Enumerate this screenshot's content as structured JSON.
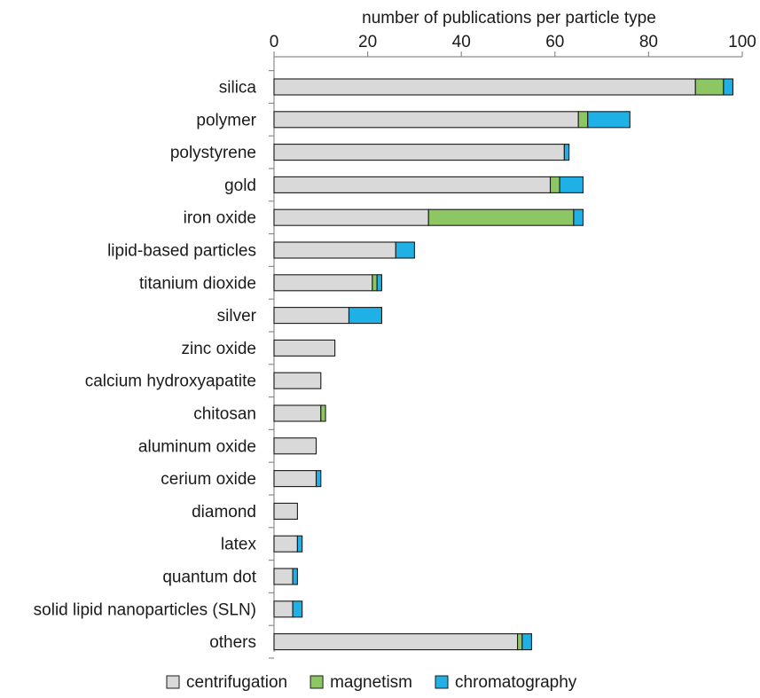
{
  "chart_data": {
    "type": "bar",
    "orientation": "horizontal",
    "stacked": true,
    "title": "",
    "xlabel": "number of publications per particle type",
    "ylabel": "",
    "xlim": [
      0,
      100
    ],
    "x_ticks": [
      0,
      20,
      40,
      60,
      80,
      100
    ],
    "x_axis_position": "top",
    "grid": false,
    "legend_position": "bottom",
    "categories": [
      "silica",
      "polymer",
      "polystyrene",
      "gold",
      "iron oxide",
      "lipid-based particles",
      "titanium dioxide",
      "silver",
      "zinc oxide",
      "calcium hydroxyapatite",
      "chitosan",
      "aluminum oxide",
      "cerium oxide",
      "diamond",
      "latex",
      "quantum dot",
      "solid lipid nanoparticles (SLN)",
      "others"
    ],
    "series": [
      {
        "name": "centrifugation",
        "color": "#d9d9d9",
        "values": [
          90,
          65,
          62,
          59,
          33,
          26,
          21,
          16,
          13,
          10,
          10,
          9,
          9,
          5,
          5,
          4,
          4,
          52
        ]
      },
      {
        "name": "magnetism",
        "color": "#8cc763",
        "values": [
          6,
          2,
          0,
          2,
          31,
          0,
          1,
          0,
          0,
          0,
          1,
          0,
          0,
          0,
          0,
          0,
          0,
          1
        ]
      },
      {
        "name": "chromatography",
        "color": "#1fb0e6",
        "values": [
          2,
          9,
          1,
          5,
          2,
          4,
          1,
          7,
          0,
          0,
          0,
          0,
          1,
          0,
          1,
          1,
          2,
          2
        ]
      }
    ]
  }
}
